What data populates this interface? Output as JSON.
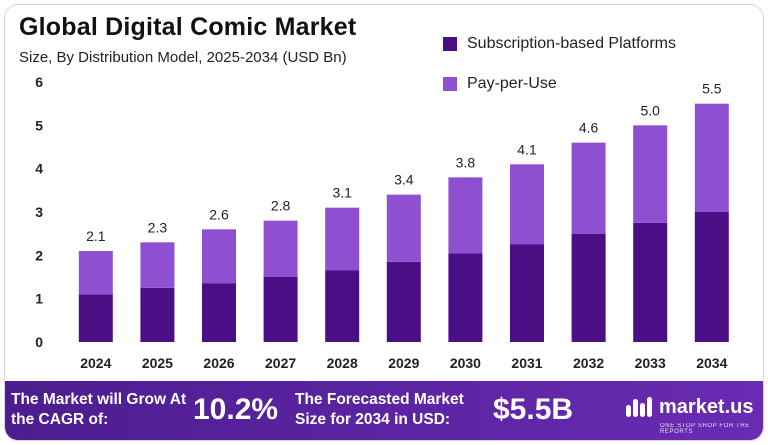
{
  "header": {
    "title": "Global Digital Comic Market",
    "subtitle": "Size, By Distribution Model, 2025-2034 (USD Bn)"
  },
  "colors": {
    "subscription": "#4a0f85",
    "pay_per_use": "#8e4fd1",
    "footer": "#5a22a0"
  },
  "chart_data": {
    "type": "bar",
    "stacked": true,
    "categories": [
      "2024",
      "2025",
      "2026",
      "2027",
      "2028",
      "2029",
      "2030",
      "2031",
      "2032",
      "2033",
      "2034"
    ],
    "series": [
      {
        "name": "Subscription-based Platforms",
        "values": [
          1.1,
          1.25,
          1.35,
          1.5,
          1.65,
          1.85,
          2.05,
          2.25,
          2.5,
          2.75,
          3.0
        ]
      },
      {
        "name": "Pay-per-Use",
        "values": [
          1.0,
          1.05,
          1.25,
          1.3,
          1.45,
          1.55,
          1.75,
          1.85,
          2.1,
          2.25,
          2.5
        ]
      }
    ],
    "totals": [
      "2.1",
      "2.3",
      "2.6",
      "2.8",
      "3.1",
      "3.4",
      "3.8",
      "4.1",
      "4.6",
      "5.0",
      "5.5"
    ],
    "yticks": [
      "0",
      "1",
      "2",
      "3",
      "4",
      "5",
      "6"
    ],
    "ylim": [
      0,
      6
    ],
    "legend_position": "top-right",
    "grid": false
  },
  "footer": {
    "cagr_label": "The Market will Grow At the CAGR of:",
    "cagr_value": "10.2%",
    "size_label": "The Forecasted Market Size for 2034 in USD:",
    "size_value": "$5.5B",
    "brand_name": "market.us",
    "brand_tagline": "ONE STOP SHOP FOR THE REPORTS",
    "brand_icon": "market-us-logo-icon"
  }
}
